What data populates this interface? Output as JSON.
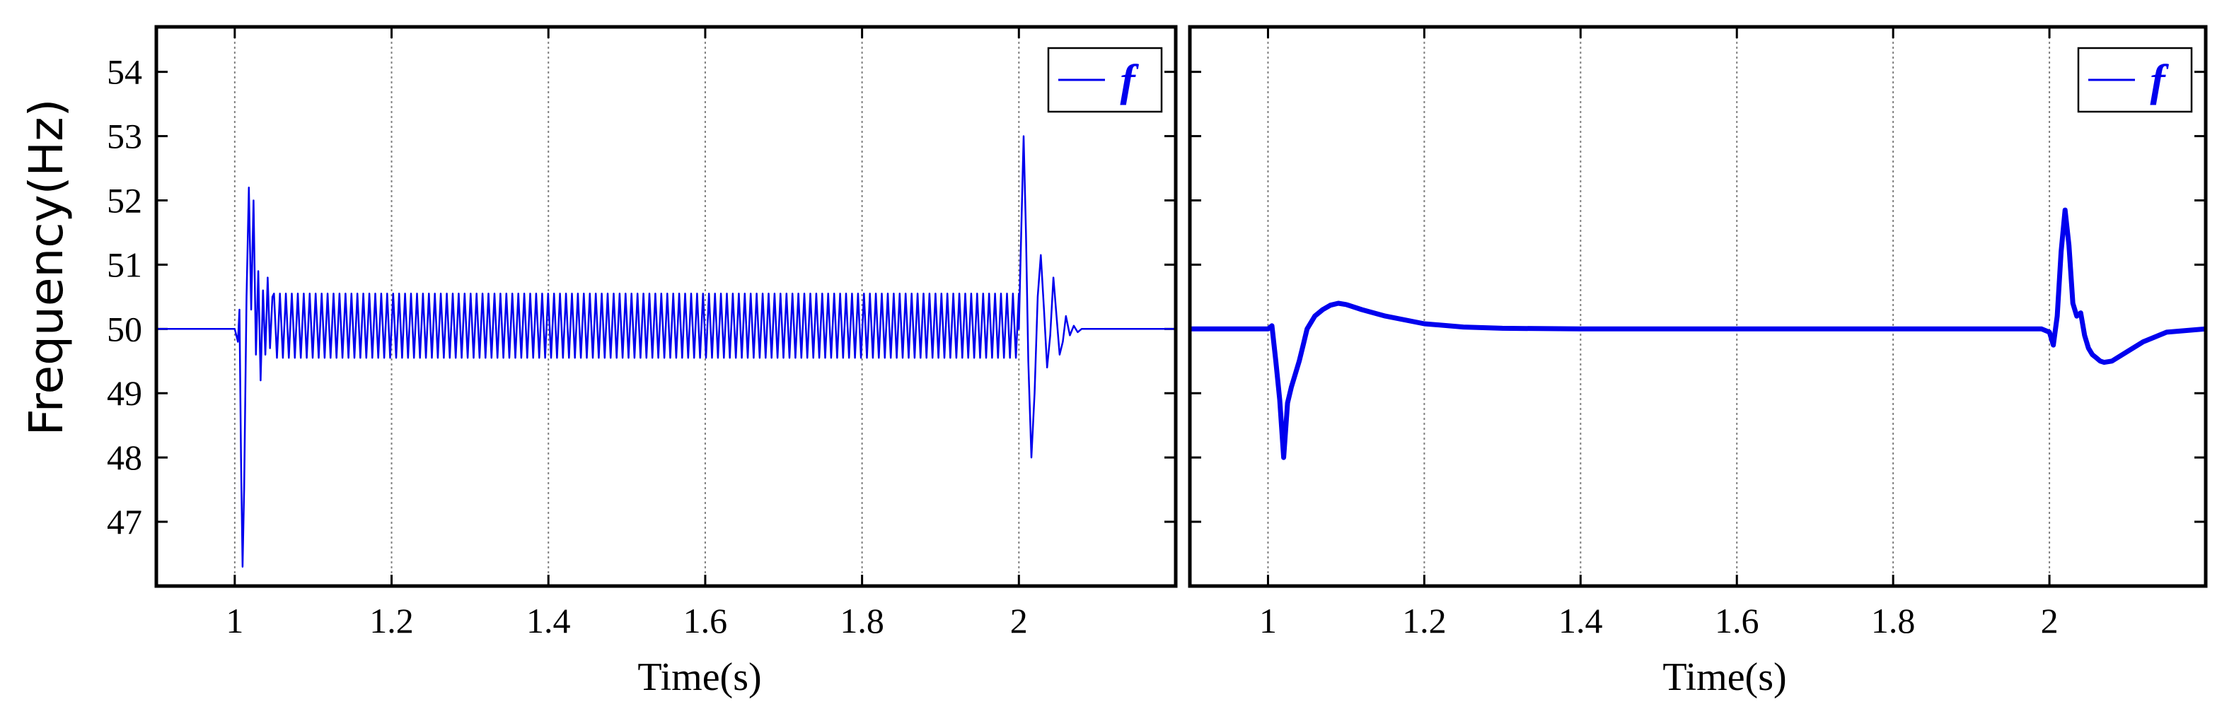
{
  "chart_data": [
    {
      "type": "line",
      "xlabel": "Time(s)",
      "ylabel": "Frequency(Hz)",
      "xlim": [
        0.9,
        2.2
      ],
      "ylim": [
        46,
        54.7
      ],
      "xticks": [
        1,
        1.2,
        1.4,
        1.6,
        1.8,
        2
      ],
      "xtick_labels": [
        "1",
        "1.2",
        "1.4",
        "1.6",
        "1.8",
        "2"
      ],
      "yticks": [
        47,
        48,
        49,
        50,
        51,
        52,
        53,
        54
      ],
      "ytick_labels": [
        "47",
        "48",
        "49",
        "50",
        "51",
        "52",
        "53",
        "54"
      ],
      "grid": "vertical dotted at x ticks",
      "legend": "top-right",
      "series": [
        {
          "name": "f",
          "color": "#0000ee",
          "x": [
            0.9,
            1.0,
            1.004,
            1.006,
            1.008,
            1.01,
            1.012,
            1.015,
            1.018,
            1.021,
            1.024,
            1.027,
            1.03,
            1.033,
            1.036,
            1.039,
            1.042,
            1.045,
            1.048,
            2.0,
            2.003,
            2.006,
            2.009,
            2.012,
            2.016,
            2.02,
            2.024,
            2.028,
            2.032,
            2.036,
            2.04,
            2.044,
            2.048,
            2.052,
            2.056,
            2.06,
            2.065,
            2.07,
            2.075,
            2.08,
            2.09,
            2.1,
            2.15,
            2.2
          ],
          "y": [
            50.0,
            50.0,
            49.8,
            50.3,
            48.0,
            46.3,
            47.5,
            50.5,
            52.2,
            50.3,
            52.0,
            49.6,
            50.9,
            49.2,
            50.6,
            49.6,
            50.8,
            49.7,
            50.5,
            50.0,
            51.5,
            53.0,
            51.5,
            49.5,
            48.0,
            49.0,
            50.5,
            51.15,
            50.3,
            49.4,
            49.9,
            50.8,
            50.2,
            49.6,
            49.8,
            50.2,
            49.9,
            50.05,
            49.95,
            50.0,
            50.0,
            50.0,
            50.0,
            50.0
          ],
          "oscillation": {
            "x_start": 1.05,
            "x_end": 2.0,
            "mean": 50.05,
            "max": 50.55,
            "min": 49.55,
            "cycles": 125
          }
        }
      ]
    },
    {
      "type": "line",
      "xlabel": "Time(s)",
      "ylabel": "",
      "xlim": [
        0.9,
        2.2
      ],
      "ylim": [
        46,
        54.7
      ],
      "xticks": [
        1,
        1.2,
        1.4,
        1.6,
        1.8,
        2
      ],
      "xtick_labels": [
        "1",
        "1.2",
        "1.4",
        "1.6",
        "1.8",
        "2"
      ],
      "yticks": [
        47,
        48,
        49,
        50,
        51,
        52,
        53,
        54
      ],
      "grid": "vertical dotted at x ticks",
      "legend": "top-right",
      "series": [
        {
          "name": "f",
          "color": "#0000ee",
          "x": [
            0.9,
            1.0,
            1.005,
            1.01,
            1.015,
            1.02,
            1.025,
            1.03,
            1.035,
            1.04,
            1.045,
            1.05,
            1.06,
            1.07,
            1.08,
            1.09,
            1.1,
            1.12,
            1.15,
            1.2,
            1.25,
            1.3,
            1.4,
            1.6,
            1.8,
            1.99,
            2.0,
            2.005,
            2.01,
            2.015,
            2.02,
            2.025,
            2.03,
            2.035,
            2.04,
            2.045,
            2.05,
            2.055,
            2.06,
            2.065,
            2.07,
            2.08,
            2.1,
            2.12,
            2.15,
            2.2
          ],
          "y": [
            50.0,
            50.0,
            50.05,
            49.5,
            48.9,
            48.0,
            48.85,
            49.1,
            49.3,
            49.5,
            49.75,
            50.0,
            50.2,
            50.3,
            50.37,
            50.4,
            50.38,
            50.3,
            50.2,
            50.08,
            50.03,
            50.01,
            50.0,
            50.0,
            50.0,
            50.0,
            49.95,
            49.75,
            50.2,
            51.2,
            51.85,
            51.3,
            50.4,
            50.2,
            50.25,
            49.9,
            49.7,
            49.6,
            49.55,
            49.5,
            49.48,
            49.5,
            49.65,
            49.8,
            49.95,
            50.0
          ]
        }
      ]
    }
  ]
}
